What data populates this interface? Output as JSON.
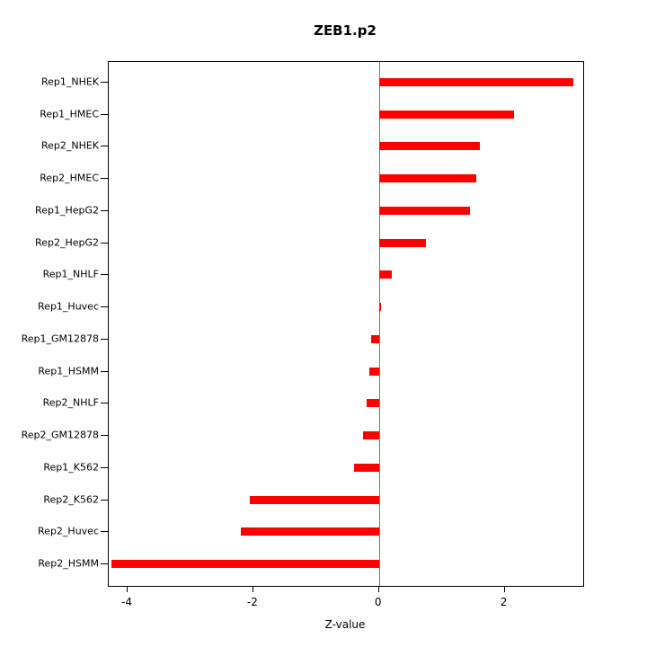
{
  "chart_data": {
    "type": "bar",
    "orientation": "horizontal",
    "title": "ZEB1.p2",
    "xlabel": "Z-value",
    "ylabel": "",
    "categories": [
      "Rep1_NHEK",
      "Rep1_HMEC",
      "Rep2_NHEK",
      "Rep2_HMEC",
      "Rep1_HepG2",
      "Rep2_HepG2",
      "Rep1_NHLF",
      "Rep1_Huvec",
      "Rep1_GM12878",
      "Rep1_HSMM",
      "Rep2_NHLF",
      "Rep2_GM12878",
      "Rep1_K562",
      "Rep2_K562",
      "Rep2_Huvec",
      "Rep2_HSMM"
    ],
    "values": [
      3.1,
      2.15,
      1.6,
      1.55,
      1.45,
      0.75,
      0.2,
      0.03,
      -0.12,
      -0.15,
      -0.2,
      -0.25,
      -0.4,
      -2.05,
      -2.2,
      -4.25
    ],
    "xlim": [
      -4.3,
      3.25
    ],
    "x_ticks": [
      -4,
      -2,
      0,
      2
    ],
    "x_tick_labels": [
      "-4",
      "-2",
      "0",
      "2"
    ],
    "grid": false,
    "legend": "none",
    "bar_color": "#ff0000",
    "zero_line_color": "#00cc00",
    "axis_color": "#000000",
    "background_color": "#ffffff"
  }
}
